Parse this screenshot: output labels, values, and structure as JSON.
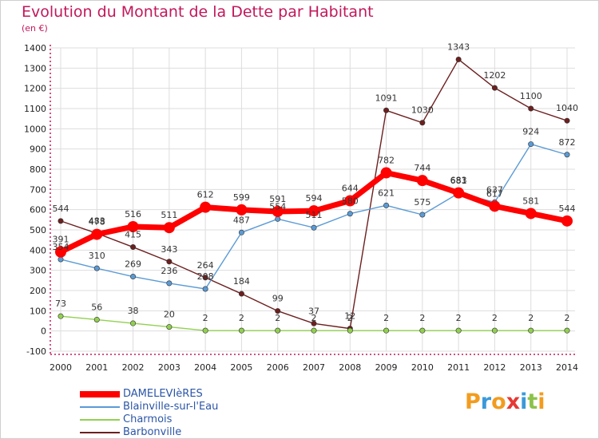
{
  "title": "Evolution du Montant de la Dette par Habitant",
  "unit": "(en €)",
  "logo_text": "Proxiti",
  "logo_letters": [
    {
      "ch": "P",
      "color": "#f29c1f"
    },
    {
      "ch": "r",
      "color": "#3a9ad9"
    },
    {
      "ch": "o",
      "color": "#f29c1f"
    },
    {
      "ch": "x",
      "color": "#e53935"
    },
    {
      "ch": "i",
      "color": "#3a9ad9"
    },
    {
      "ch": "t",
      "color": "#8bc34a"
    },
    {
      "ch": "i",
      "color": "#f29c1f"
    }
  ],
  "chart_data": {
    "type": "line",
    "title": "Evolution du Montant de la Dette par Habitant",
    "ylabel": "(en €)",
    "ylim": [
      -100,
      1400
    ],
    "yticks": [
      -100,
      0,
      100,
      200,
      300,
      400,
      500,
      600,
      700,
      800,
      900,
      1000,
      1100,
      1200,
      1300,
      1400
    ],
    "x": [
      "2000",
      "2001",
      "2002",
      "2003",
      "2004",
      "2005",
      "2006",
      "2007",
      "2008",
      "2009",
      "2010",
      "2011",
      "2012",
      "2013",
      "2014"
    ],
    "grid": true,
    "legend_position": "bottom-left",
    "series": [
      {
        "name": "DAMELEVIèRES",
        "color": "#ff0000",
        "values": [
          391,
          478,
          516,
          511,
          612,
          599,
          591,
          594,
          644,
          782,
          744,
          683,
          617,
          581,
          544
        ]
      },
      {
        "name": "Blainville-sur-l'Eau",
        "color": "#5b9bd5",
        "values": [
          354,
          310,
          269,
          236,
          208,
          487,
          554,
          511,
          580,
          621,
          575,
          681,
          637,
          924,
          872
        ]
      },
      {
        "name": "Charmois",
        "color": "#92d050",
        "values": [
          73,
          56,
          38,
          20,
          2,
          2,
          2,
          2,
          2,
          2,
          2,
          2,
          2,
          2,
          2
        ]
      },
      {
        "name": "Barbonville",
        "color": "#6d1f1f",
        "values": [
          544,
          483,
          415,
          343,
          264,
          184,
          99,
          37,
          12,
          1091,
          1030,
          1343,
          1202,
          1100,
          1040
        ]
      }
    ],
    "data_labels": {
      "DAMELEVIèRES": [
        "391",
        "478",
        "516",
        "511",
        "612",
        "599",
        "591",
        "594",
        "644",
        "782",
        "744",
        "683",
        "617",
        "581",
        "544"
      ],
      "Blainville-sur-l'Eau": [
        "354",
        "310",
        "269",
        "236",
        "208",
        "487",
        "554",
        "511",
        "580",
        "621",
        "575",
        "681",
        "637",
        "924",
        "872"
      ],
      "Charmois": [
        "73",
        "56",
        "38",
        "20",
        "2",
        "2",
        "2",
        "2",
        "2",
        "2",
        "2",
        "2",
        "2",
        "2",
        "2"
      ],
      "Barbonville": [
        "544",
        "483",
        "415",
        "343",
        "264",
        "184",
        "99",
        "37",
        "12",
        "1091",
        "1030",
        "1343",
        "1202",
        "1100",
        "1040"
      ]
    }
  }
}
